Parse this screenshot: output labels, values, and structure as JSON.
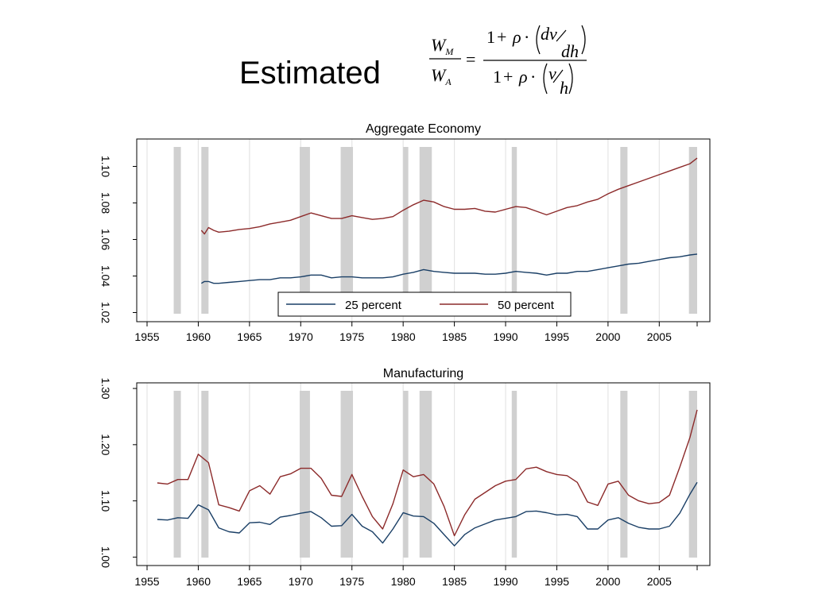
{
  "header": {
    "title": "Estimated",
    "formula": {
      "lhs_num": "W",
      "lhs_num_sub": "M",
      "lhs_den": "W",
      "lhs_den_sub": "A",
      "equals": "=",
      "one": "1",
      "plus": "+",
      "rho": "ρ",
      "dot": "·",
      "dv": "dv",
      "dh": "dh",
      "v": "v",
      "h": "h"
    }
  },
  "colors": {
    "series_25": "#1a3f66",
    "series_50": "#8c2a2a",
    "recession": "#d0d0d0",
    "gridline": "#e4e4e4"
  },
  "chart_data": [
    {
      "type": "line",
      "title": "Aggregate Economy",
      "xlabel": "",
      "ylabel": "",
      "xlim": [
        1955,
        2008.7
      ],
      "ylim": [
        1.015,
        1.115
      ],
      "x_ticks": [
        1955,
        1960,
        1965,
        1970,
        1975,
        1980,
        1985,
        1990,
        1995,
        2000,
        2005
      ],
      "y_ticks": [
        1.02,
        1.04,
        1.06,
        1.08,
        1.1
      ],
      "y_tick_labels": [
        "1.02",
        "1.04",
        "1.06",
        "1.08",
        "1.10"
      ],
      "grid": true,
      "legend_position": "bottom-center",
      "recession_bands": [
        [
          1957.6,
          1958.3
        ],
        [
          1960.3,
          1961.0
        ],
        [
          1969.9,
          1970.9
        ],
        [
          1973.9,
          1975.1
        ],
        [
          1980.0,
          1980.5
        ],
        [
          1981.6,
          1982.8
        ],
        [
          1990.6,
          1991.1
        ],
        [
          2001.2,
          2001.9
        ],
        [
          2007.9,
          2008.7
        ]
      ],
      "series": [
        {
          "name": "25 percent",
          "color_key": "series_25",
          "x": [
            1960.3,
            1960.6,
            1961.0,
            1961.5,
            1962,
            1963,
            1964,
            1965,
            1966,
            1967,
            1968,
            1969,
            1970,
            1971,
            1972,
            1973,
            1974,
            1975,
            1976,
            1977,
            1978,
            1979,
            1980,
            1981,
            1982,
            1983,
            1984,
            1985,
            1986,
            1987,
            1988,
            1989,
            1990,
            1991,
            1992,
            1993,
            1994,
            1995,
            1996,
            1997,
            1998,
            1999,
            2000,
            2001,
            2002,
            2003,
            2004,
            2005,
            2006,
            2007,
            2008,
            2008.7
          ],
          "y": [
            1.036,
            1.037,
            1.037,
            1.036,
            1.036,
            1.0365,
            1.037,
            1.0375,
            1.038,
            1.038,
            1.039,
            1.039,
            1.0395,
            1.0405,
            1.0405,
            1.039,
            1.0395,
            1.0395,
            1.039,
            1.039,
            1.039,
            1.0395,
            1.041,
            1.042,
            1.0435,
            1.0425,
            1.042,
            1.0415,
            1.0415,
            1.0415,
            1.041,
            1.041,
            1.0415,
            1.0425,
            1.042,
            1.0415,
            1.0405,
            1.0415,
            1.0415,
            1.0425,
            1.0425,
            1.0435,
            1.0445,
            1.0455,
            1.0465,
            1.047,
            1.048,
            1.049,
            1.05,
            1.0505,
            1.0515,
            1.052
          ]
        },
        {
          "name": "50 percent",
          "color_key": "series_50",
          "x": [
            1960.3,
            1960.6,
            1961.0,
            1961.5,
            1962,
            1963,
            1964,
            1965,
            1966,
            1967,
            1968,
            1969,
            1970,
            1971,
            1972,
            1973,
            1974,
            1975,
            1976,
            1977,
            1978,
            1979,
            1980,
            1981,
            1982,
            1983,
            1984,
            1985,
            1986,
            1987,
            1988,
            1989,
            1990,
            1991,
            1992,
            1993,
            1994,
            1995,
            1996,
            1997,
            1998,
            1999,
            2000,
            2001,
            2002,
            2003,
            2004,
            2005,
            2006,
            2007,
            2008,
            2008.7
          ],
          "y": [
            1.065,
            1.063,
            1.0665,
            1.065,
            1.064,
            1.0645,
            1.0655,
            1.066,
            1.067,
            1.0685,
            1.0695,
            1.0705,
            1.0725,
            1.0745,
            1.073,
            1.0715,
            1.0715,
            1.073,
            1.072,
            1.071,
            1.0715,
            1.0725,
            1.076,
            1.079,
            1.0815,
            1.0805,
            1.078,
            1.0765,
            1.0765,
            1.077,
            1.0755,
            1.075,
            1.0765,
            1.078,
            1.0775,
            1.0755,
            1.0735,
            1.0755,
            1.0775,
            1.0785,
            1.0805,
            1.082,
            1.085,
            1.0875,
            1.0895,
            1.0915,
            1.0935,
            1.0955,
            1.0975,
            1.0995,
            1.1015,
            1.1045
          ]
        }
      ]
    },
    {
      "type": "line",
      "title": "Manufacturing",
      "xlabel": "",
      "ylabel": "",
      "xlim": [
        1955,
        2008.7
      ],
      "ylim": [
        0.985,
        1.31
      ],
      "x_ticks": [
        1955,
        1960,
        1965,
        1970,
        1975,
        1980,
        1985,
        1990,
        1995,
        2000,
        2005
      ],
      "y_ticks": [
        1.0,
        1.1,
        1.2,
        1.3
      ],
      "y_tick_labels": [
        "1.00",
        "1.10",
        "1.20",
        "1.30"
      ],
      "grid": true,
      "recession_bands": [
        [
          1957.6,
          1958.3
        ],
        [
          1960.3,
          1961.0
        ],
        [
          1969.9,
          1970.9
        ],
        [
          1973.9,
          1975.1
        ],
        [
          1980.0,
          1980.5
        ],
        [
          1981.6,
          1982.8
        ],
        [
          1990.6,
          1991.1
        ],
        [
          2001.2,
          2001.9
        ],
        [
          2007.9,
          2008.7
        ]
      ],
      "series": [
        {
          "name": "25 percent",
          "color_key": "series_25",
          "x": [
            1956.0,
            1957.0,
            1958.0,
            1959.0,
            1960.0,
            1961.0,
            1962.0,
            1963.0,
            1964.0,
            1965.0,
            1966.0,
            1967.0,
            1968.0,
            1969.0,
            1970.0,
            1971.0,
            1972.0,
            1973.0,
            1974.0,
            1975.0,
            1976.0,
            1977.0,
            1978.0,
            1979.0,
            1980.0,
            1981.0,
            1982.0,
            1983.0,
            1984.0,
            1985.0,
            1986.0,
            1987.0,
            1988.0,
            1989.0,
            1990.0,
            1991.0,
            1992.0,
            1993.0,
            1994.0,
            1995.0,
            1996.0,
            1997.0,
            1998.0,
            1999.0,
            2000.0,
            2001.0,
            2002.0,
            2003.0,
            2004.0,
            2005.0,
            2006.0,
            2007.0,
            2008.0,
            2008.7
          ],
          "y": [
            1.067,
            1.066,
            1.07,
            1.069,
            1.093,
            1.084,
            1.052,
            1.045,
            1.043,
            1.061,
            1.062,
            1.058,
            1.071,
            1.074,
            1.078,
            1.081,
            1.07,
            1.055,
            1.056,
            1.076,
            1.055,
            1.045,
            1.025,
            1.05,
            1.079,
            1.073,
            1.072,
            1.06,
            1.04,
            1.02,
            1.04,
            1.052,
            1.059,
            1.066,
            1.069,
            1.072,
            1.081,
            1.082,
            1.079,
            1.075,
            1.076,
            1.072,
            1.05,
            1.05,
            1.066,
            1.07,
            1.06,
            1.053,
            1.05,
            1.05,
            1.055,
            1.078,
            1.112,
            1.133
          ]
        },
        {
          "name": "50 percent",
          "color_key": "series_50",
          "x": [
            1956.0,
            1957.0,
            1958.0,
            1959.0,
            1960.0,
            1961.0,
            1962.0,
            1963.0,
            1964.0,
            1965.0,
            1966.0,
            1967.0,
            1968.0,
            1969.0,
            1970.0,
            1971.0,
            1972.0,
            1973.0,
            1974.0,
            1975.0,
            1976.0,
            1977.0,
            1978.0,
            1979.0,
            1980.0,
            1981.0,
            1982.0,
            1983.0,
            1984.0,
            1985.0,
            1986.0,
            1987.0,
            1988.0,
            1989.0,
            1990.0,
            1991.0,
            1992.0,
            1993.0,
            1994.0,
            1995.0,
            1996.0,
            1997.0,
            1998.0,
            1999.0,
            2000.0,
            2001.0,
            2002.0,
            2003.0,
            2004.0,
            2005.0,
            2006.0,
            2007.0,
            2008.0,
            2008.7
          ],
          "y": [
            1.132,
            1.13,
            1.138,
            1.138,
            1.183,
            1.168,
            1.093,
            1.088,
            1.082,
            1.118,
            1.127,
            1.112,
            1.143,
            1.148,
            1.158,
            1.158,
            1.14,
            1.11,
            1.108,
            1.147,
            1.108,
            1.072,
            1.05,
            1.095,
            1.155,
            1.143,
            1.147,
            1.13,
            1.09,
            1.038,
            1.075,
            1.103,
            1.115,
            1.127,
            1.135,
            1.138,
            1.157,
            1.16,
            1.152,
            1.147,
            1.145,
            1.133,
            1.098,
            1.092,
            1.13,
            1.135,
            1.11,
            1.1,
            1.095,
            1.097,
            1.11,
            1.16,
            1.213,
            1.262
          ]
        }
      ]
    }
  ],
  "legend": {
    "items": [
      {
        "label": "25 percent",
        "color_key": "series_25"
      },
      {
        "label": "50 percent",
        "color_key": "series_50"
      }
    ]
  }
}
